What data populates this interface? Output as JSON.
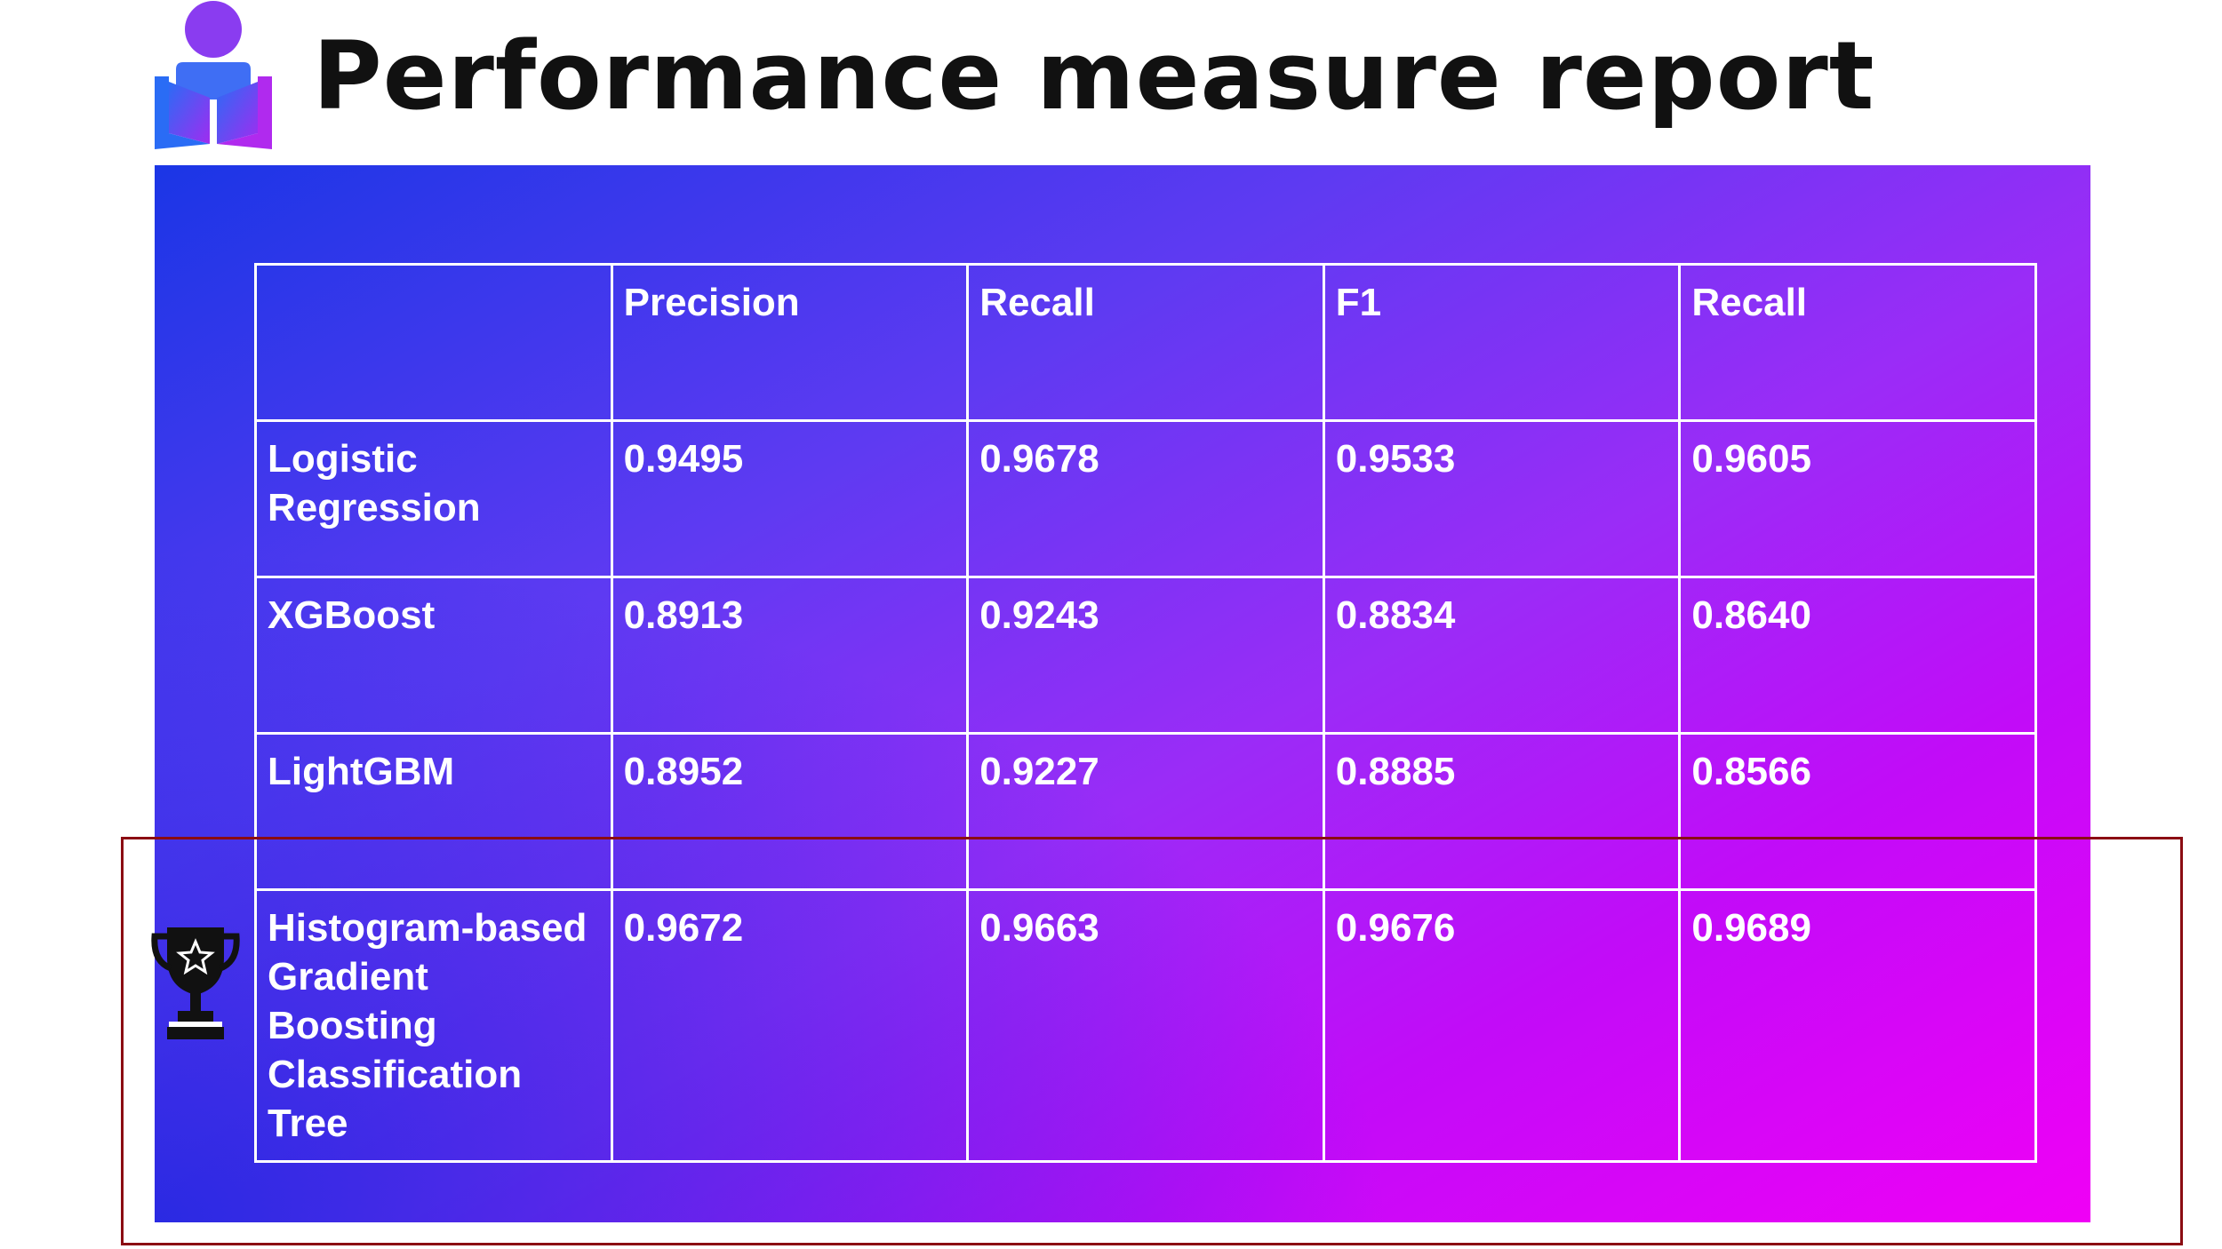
{
  "header": {
    "title": "Performance measure report"
  },
  "table": {
    "columns": [
      "",
      "Precision",
      "Recall",
      "F1",
      "Recall"
    ],
    "rows": [
      {
        "model": "Logistic Regression",
        "values": [
          "0.9495",
          "0.9678",
          "0.9533",
          "0.9605"
        ]
      },
      {
        "model": "XGBoost",
        "values": [
          "0.8913",
          "0.9243",
          "0.8834",
          "0.8640"
        ]
      },
      {
        "model": "LightGBM",
        "values": [
          "0.8952",
          "0.9227",
          "0.8885",
          "0.8566"
        ]
      },
      {
        "model": "Histogram-based Gradient Boosting Classification Tree",
        "values": [
          "0.9672",
          "0.9663",
          "0.9676",
          "0.9689"
        ]
      }
    ]
  },
  "icons": {
    "logo": "reader-person-icon",
    "winner": "trophy-icon"
  },
  "colors": {
    "title": "#111111",
    "gradient_start": "#1b36e6",
    "gradient_end": "#f000f6",
    "highlight_border": "#8b0c12"
  }
}
